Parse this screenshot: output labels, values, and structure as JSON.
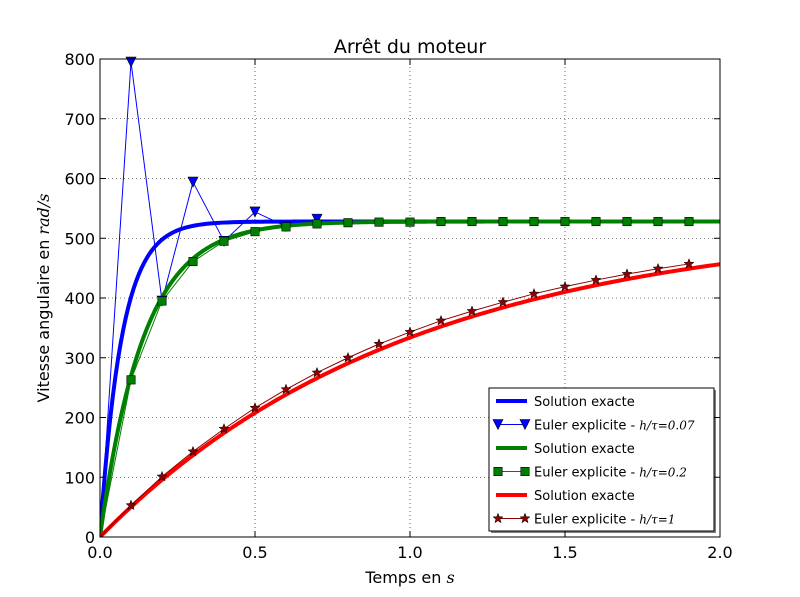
{
  "chart_data": {
    "type": "line",
    "title": "Arrêt du moteur",
    "xlabel_text": "Temps en ",
    "xlabel_math": "s",
    "ylabel_text": "Vitesse angulaire en ",
    "ylabel_math": "rad/s",
    "xlim": [
      0,
      2.0
    ],
    "ylim": [
      0,
      800
    ],
    "xticks": [
      "0.0",
      "0.5",
      "1.0",
      "1.5",
      "2.0"
    ],
    "yticks": [
      "0",
      "100",
      "200",
      "300",
      "400",
      "500",
      "600",
      "700",
      "800"
    ],
    "grid": true,
    "legend_position": "lower-right",
    "series": [
      {
        "name": "Solution exacte",
        "kind": "exact",
        "color": "#0000ff",
        "steady": 528,
        "tau": 0.07,
        "x": [
          0,
          0.05,
          0.1,
          0.15,
          0.2,
          0.3,
          0.4,
          0.5,
          0.6,
          0.8,
          1.0,
          1.5,
          2.0
        ],
        "values": [
          0,
          269,
          401,
          466,
          497,
          520,
          525,
          527,
          528,
          528,
          528,
          528,
          528
        ]
      },
      {
        "name": "Euler explicite - ",
        "name_math": "h/τ=0.07",
        "kind": "euler",
        "color": "#0000ff",
        "marker": "triangle-down",
        "x": [
          0,
          0.1,
          0.2,
          0.3,
          0.4,
          0.5,
          0.6,
          0.7
        ],
        "values": [
          0,
          795,
          395,
          594,
          495,
          544,
          520,
          532
        ]
      },
      {
        "name": "Solution exacte",
        "kind": "exact",
        "color": "#008000",
        "steady": 528,
        "tau": 0.14,
        "x": [
          0,
          0.1,
          0.2,
          0.3,
          0.4,
          0.5,
          0.6,
          0.7,
          0.8,
          1.0,
          1.2,
          1.5,
          2.0
        ],
        "values": [
          0,
          268,
          403,
          470,
          502,
          517,
          523,
          526,
          527,
          528,
          528,
          528,
          528
        ]
      },
      {
        "name": "Euler explicite - ",
        "name_math": "h/τ=0.2",
        "kind": "euler",
        "color": "#008000",
        "marker": "square",
        "x": [
          0,
          0.1,
          0.2,
          0.3,
          0.4,
          0.5,
          0.6,
          0.7,
          0.8,
          0.9,
          1.0,
          1.1,
          1.2,
          1.3,
          1.4,
          1.5,
          1.6,
          1.7,
          1.8,
          1.9
        ],
        "values": [
          0,
          263,
          395,
          461,
          495,
          511,
          519,
          524,
          526,
          527,
          527,
          528,
          528,
          528,
          528,
          528,
          528,
          528,
          528,
          528
        ]
      },
      {
        "name": "Solution exacte",
        "kind": "exact",
        "color": "#ff0000",
        "steady": 528,
        "tau": 1.0,
        "x": [
          0,
          0.2,
          0.4,
          0.6,
          0.8,
          1.0,
          1.2,
          1.4,
          1.6,
          1.8,
          2.0
        ],
        "values": [
          0,
          96,
          174,
          238,
          291,
          334,
          369,
          398,
          422,
          441,
          457
        ]
      },
      {
        "name": "Euler explicite - ",
        "name_math": "h/τ=1",
        "kind": "euler",
        "color": "#8b0000",
        "marker": "star",
        "x": [
          0,
          0.1,
          0.2,
          0.3,
          0.4,
          0.5,
          0.6,
          0.7,
          0.8,
          0.9,
          1.0,
          1.1,
          1.2,
          1.3,
          1.4,
          1.5,
          1.6,
          1.7,
          1.8,
          1.9
        ],
        "values": [
          0,
          53,
          101,
          143,
          181,
          216,
          247,
          275,
          300,
          323,
          343,
          362,
          378,
          393,
          407,
          419,
          430,
          440,
          449,
          457
        ]
      }
    ]
  }
}
